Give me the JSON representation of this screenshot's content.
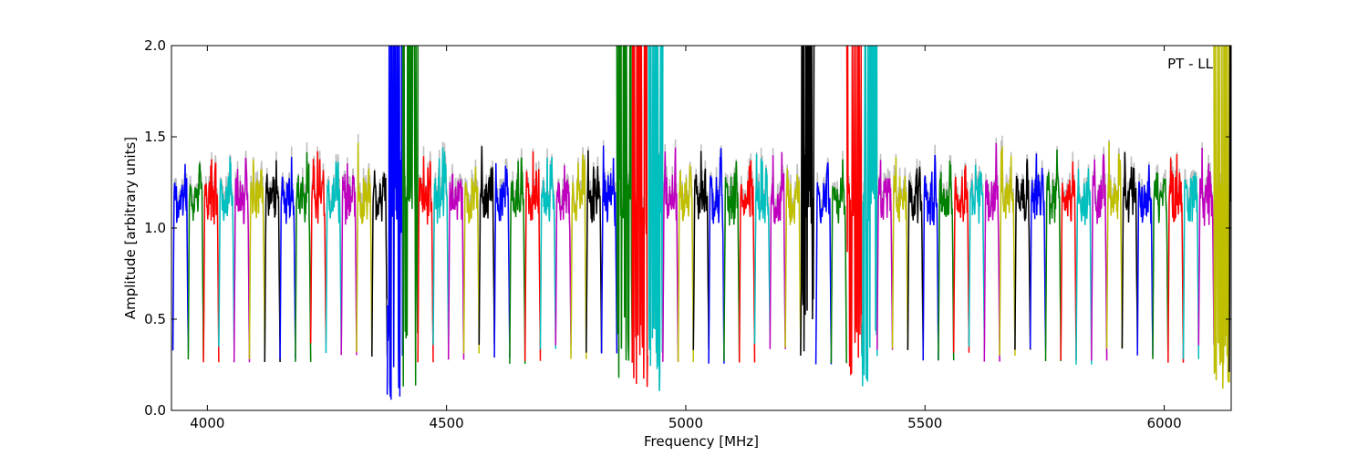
{
  "chart_data": {
    "type": "line",
    "title": "",
    "annotation": "PT - LL",
    "xlabel": "Frequency [MHz]",
    "ylabel": "Amplitude [arbitrary units]",
    "xlim": [
      3925,
      6140
    ],
    "ylim": [
      0.0,
      2.0
    ],
    "xticks": [
      4000,
      4500,
      5000,
      5500,
      6000
    ],
    "xtick_labels": [
      "4000",
      "4500",
      "5000",
      "5500",
      "6000"
    ],
    "yticks": [
      0.0,
      0.5,
      1.0,
      1.5,
      2.0
    ],
    "ytick_labels": [
      "0.0",
      "0.5",
      "1.0",
      "1.5",
      "2.0"
    ],
    "grid": false,
    "legend": "none",
    "background_color": "#bfbfbf",
    "color_cycle": [
      "#0000ff",
      "#008000",
      "#ff0000",
      "#00bfbf",
      "#bf00bf",
      "#bfbf00",
      "#000000"
    ],
    "segment_width_mhz": 32,
    "segment_start_mhz": 3928,
    "typical_band": {
      "center": 1.2,
      "min": 0.25,
      "peak": 1.4
    },
    "outlier_segments": [
      {
        "x_range": [
          4395,
          4430
        ],
        "min": 0.04,
        "max": 2.0
      },
      {
        "x_range": [
          4860,
          4895
        ],
        "min": 0.12,
        "max": 2.0
      },
      {
        "x_range": [
          4900,
          4935
        ],
        "min": 0.09,
        "max": 2.0
      },
      {
        "x_range": [
          5245,
          5270
        ],
        "min": 0.3,
        "max": 2.0
      },
      {
        "x_range": [
          5355,
          5385
        ],
        "min": 0.11,
        "max": 2.0
      },
      {
        "x_range": [
          6105,
          6140
        ],
        "min": 0.08,
        "max": 2.0
      }
    ]
  }
}
